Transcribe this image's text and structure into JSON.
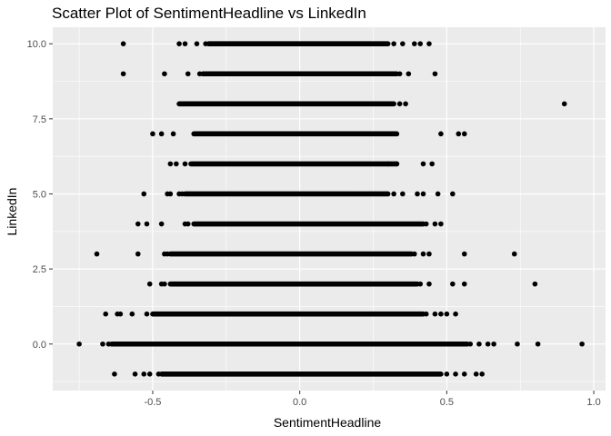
{
  "chart_data": {
    "type": "scatter",
    "title": "Scatter Plot of SentimentHeadline vs LinkedIn",
    "xlabel": "SentimentHeadline",
    "ylabel": "LinkedIn",
    "xlim": [
      -0.84,
      1.04
    ],
    "ylim": [
      -1.55,
      10.55
    ],
    "x_ticks": [
      -0.5,
      0.0,
      0.5,
      1.0
    ],
    "x_tick_labels": [
      "-0.5",
      "0.0",
      "0.5",
      "1.0"
    ],
    "y_ticks": [
      0,
      2.5,
      5,
      7.5,
      10
    ],
    "y_tick_labels": [
      "0.0",
      "2.5",
      "5.0",
      "7.5",
      "10.0"
    ],
    "grid": true,
    "legend": "none",
    "colors": {
      "panel_background": "#ebebeb",
      "grid_major": "#ffffff",
      "points": "#000000"
    },
    "series": [
      {
        "points": [
          {
            "x": -0.63,
            "y": -1
          },
          {
            "x": -0.56,
            "y": -1
          },
          {
            "x": -0.53,
            "y": -1
          },
          {
            "x": -0.51,
            "y": -1
          },
          {
            "x": -0.48,
            "y": -1
          },
          {
            "x": 0.5,
            "y": -1
          },
          {
            "x": 0.53,
            "y": -1
          },
          {
            "x": 0.56,
            "y": -1
          },
          {
            "x": 0.6,
            "y": -1
          },
          {
            "x": 0.62,
            "y": -1
          },
          {
            "x": -0.75,
            "y": 0
          },
          {
            "x": -0.67,
            "y": 0
          },
          {
            "x": -0.65,
            "y": 0
          },
          {
            "x": 0.58,
            "y": 0
          },
          {
            "x": 0.61,
            "y": 0
          },
          {
            "x": 0.64,
            "y": 0
          },
          {
            "x": 0.66,
            "y": 0
          },
          {
            "x": 0.74,
            "y": 0
          },
          {
            "x": 0.81,
            "y": 0
          },
          {
            "x": 0.96,
            "y": 0
          },
          {
            "x": -0.66,
            "y": 1
          },
          {
            "x": -0.62,
            "y": 1
          },
          {
            "x": -0.61,
            "y": 1
          },
          {
            "x": -0.57,
            "y": 1
          },
          {
            "x": -0.52,
            "y": 1
          },
          {
            "x": 0.43,
            "y": 1
          },
          {
            "x": 0.46,
            "y": 1
          },
          {
            "x": 0.48,
            "y": 1
          },
          {
            "x": 0.5,
            "y": 1
          },
          {
            "x": 0.53,
            "y": 1
          },
          {
            "x": -0.51,
            "y": 2
          },
          {
            "x": -0.47,
            "y": 2
          },
          {
            "x": -0.46,
            "y": 2
          },
          {
            "x": 0.41,
            "y": 2
          },
          {
            "x": 0.44,
            "y": 2
          },
          {
            "x": 0.52,
            "y": 2
          },
          {
            "x": 0.56,
            "y": 2
          },
          {
            "x": 0.8,
            "y": 2
          },
          {
            "x": -0.69,
            "y": 3
          },
          {
            "x": -0.55,
            "y": 3
          },
          {
            "x": -0.46,
            "y": 3
          },
          {
            "x": -0.45,
            "y": 3
          },
          {
            "x": 0.39,
            "y": 3
          },
          {
            "x": 0.42,
            "y": 3
          },
          {
            "x": 0.44,
            "y": 3
          },
          {
            "x": 0.56,
            "y": 3
          },
          {
            "x": 0.73,
            "y": 3
          },
          {
            "x": -0.55,
            "y": 4
          },
          {
            "x": -0.52,
            "y": 4
          },
          {
            "x": -0.47,
            "y": 4
          },
          {
            "x": -0.39,
            "y": 4
          },
          {
            "x": -0.38,
            "y": 4
          },
          {
            "x": 0.43,
            "y": 4
          },
          {
            "x": 0.46,
            "y": 4
          },
          {
            "x": 0.48,
            "y": 4
          },
          {
            "x": -0.53,
            "y": 5
          },
          {
            "x": -0.45,
            "y": 5
          },
          {
            "x": -0.44,
            "y": 5
          },
          {
            "x": -0.41,
            "y": 5
          },
          {
            "x": -0.4,
            "y": 5
          },
          {
            "x": 0.32,
            "y": 5
          },
          {
            "x": 0.35,
            "y": 5
          },
          {
            "x": 0.4,
            "y": 5
          },
          {
            "x": 0.42,
            "y": 5
          },
          {
            "x": 0.47,
            "y": 5
          },
          {
            "x": 0.52,
            "y": 5
          },
          {
            "x": -0.44,
            "y": 6
          },
          {
            "x": -0.42,
            "y": 6
          },
          {
            "x": -0.39,
            "y": 6
          },
          {
            "x": 0.3,
            "y": 6
          },
          {
            "x": 0.33,
            "y": 6
          },
          {
            "x": 0.42,
            "y": 6
          },
          {
            "x": 0.45,
            "y": 6
          },
          {
            "x": -0.5,
            "y": 7
          },
          {
            "x": -0.47,
            "y": 7
          },
          {
            "x": -0.43,
            "y": 7
          },
          {
            "x": 0.48,
            "y": 7
          },
          {
            "x": 0.54,
            "y": 7
          },
          {
            "x": 0.56,
            "y": 7
          },
          {
            "x": -0.4,
            "y": 8
          },
          {
            "x": -0.37,
            "y": 8
          },
          {
            "x": 0.34,
            "y": 8
          },
          {
            "x": 0.36,
            "y": 8
          },
          {
            "x": 0.9,
            "y": 8
          },
          {
            "x": -0.6,
            "y": 9
          },
          {
            "x": -0.46,
            "y": 9
          },
          {
            "x": -0.38,
            "y": 9
          },
          {
            "x": -0.34,
            "y": 9
          },
          {
            "x": 0.34,
            "y": 9
          },
          {
            "x": 0.37,
            "y": 9
          },
          {
            "x": 0.46,
            "y": 9
          },
          {
            "x": -0.6,
            "y": 10
          },
          {
            "x": -0.41,
            "y": 10
          },
          {
            "x": -0.39,
            "y": 10
          },
          {
            "x": -0.35,
            "y": 10
          },
          {
            "x": -0.32,
            "y": 10
          },
          {
            "x": 0.32,
            "y": 10
          },
          {
            "x": 0.35,
            "y": 10
          },
          {
            "x": 0.39,
            "y": 10
          },
          {
            "x": 0.41,
            "y": 10
          },
          {
            "x": 0.44,
            "y": 10
          }
        ],
        "dense_ranges": [
          {
            "y": -1,
            "x_range": [
              -0.47,
              0.48
            ]
          },
          {
            "y": 0,
            "x_range": [
              -0.64,
              0.57
            ]
          },
          {
            "y": 1,
            "x_range": [
              -0.5,
              0.42
            ]
          },
          {
            "y": 2,
            "x_range": [
              -0.44,
              0.4
            ]
          },
          {
            "y": 3,
            "x_range": [
              -0.44,
              0.38
            ]
          },
          {
            "y": 4,
            "x_range": [
              -0.36,
              0.42
            ]
          },
          {
            "y": 5,
            "x_range": [
              -0.39,
              0.3
            ]
          },
          {
            "y": 6,
            "x_range": [
              -0.37,
              0.33
            ]
          },
          {
            "y": 7,
            "x_range": [
              -0.36,
              0.33
            ]
          },
          {
            "y": 8,
            "x_range": [
              -0.41,
              0.32
            ]
          },
          {
            "y": 9,
            "x_range": [
              -0.33,
              0.33
            ]
          },
          {
            "y": 10,
            "x_range": [
              -0.31,
              0.3
            ]
          }
        ]
      }
    ]
  }
}
